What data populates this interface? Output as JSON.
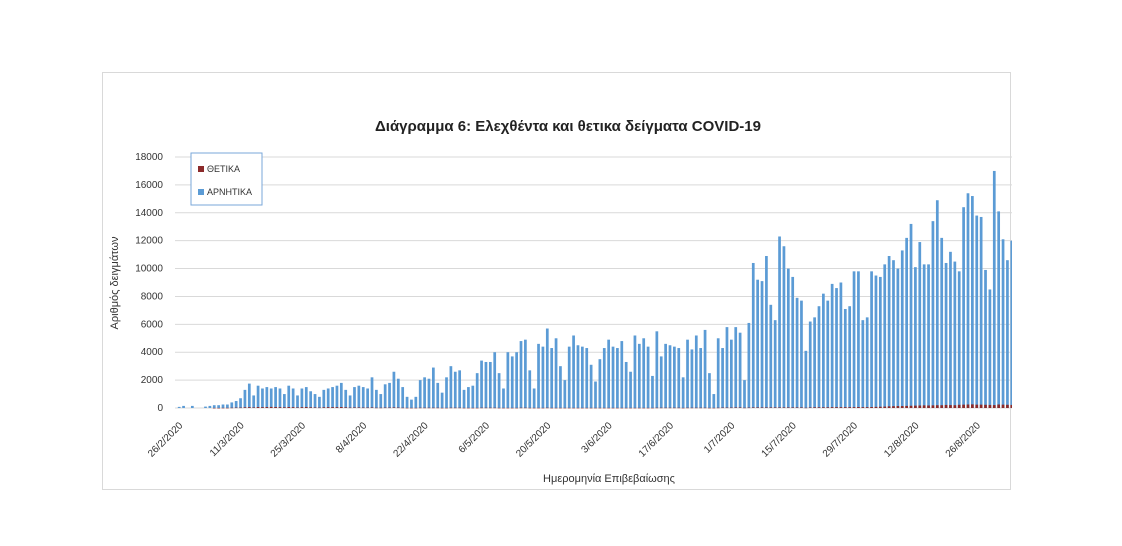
{
  "chart_data": {
    "type": "bar",
    "title": "Διάγραμμα 6: Ελεχθέντα και θετικα δείγματα COVID-19",
    "xlabel": "Ημερομηνία Επιβεβαίωσης",
    "ylabel": "Αριθμός δειγμάτων",
    "ylim": [
      0,
      18000
    ],
    "yticks": [
      0,
      2000,
      4000,
      6000,
      8000,
      10000,
      12000,
      14000,
      16000,
      18000
    ],
    "xtick_labels": [
      "26/2/2020",
      "11/3/2020",
      "25/3/2020",
      "8/4/2020",
      "22/4/2020",
      "6/5/2020",
      "20/5/2020",
      "3/6/2020",
      "17/6/2020",
      "1/7/2020",
      "15/7/2020",
      "29/7/2020",
      "12/8/2020",
      "26/8/2020"
    ],
    "first_date": "26/2/2020",
    "legend": [
      "ΘΕΤΙΚΑ",
      "ΑΡΝΗΤΙΚΑ"
    ],
    "legend_position": "top-left",
    "grid": true,
    "colors": {
      "positive": "#8b2a2a",
      "negative": "#5b9bd5"
    },
    "series": [
      {
        "name": "ΑΡΝΗΤΙΚΑ",
        "values": [
          80,
          150,
          0,
          150,
          0,
          0,
          100,
          150,
          200,
          200,
          250,
          250,
          400,
          500,
          700,
          1300,
          1750,
          900,
          1600,
          1400,
          1500,
          1400,
          1500,
          1400,
          1000,
          1600,
          1400,
          900,
          1400,
          1500,
          1200,
          1000,
          800,
          1300,
          1400,
          1500,
          1600,
          1800,
          1300,
          900,
          1500,
          1600,
          1500,
          1400,
          2200,
          1300,
          1000,
          1700,
          1800,
          2600,
          2100,
          1500,
          800,
          600,
          800,
          2000,
          2200,
          2100,
          2900,
          1800,
          1100,
          2200,
          3000,
          2600,
          2700,
          1300,
          1500,
          1600,
          2500,
          3400,
          3300,
          3300,
          4000,
          2500,
          1400,
          4000,
          3700,
          4000,
          4800,
          4900,
          2700,
          1400,
          4600,
          4400,
          5700,
          4300,
          5000,
          3000,
          2000,
          4400,
          5200,
          4500,
          4400,
          4300,
          3100,
          1900,
          3500,
          4300,
          4900,
          4400,
          4300,
          4800,
          3300,
          2600,
          5200,
          4600,
          5000,
          4400,
          2300,
          5500,
          3700,
          4600,
          4500,
          4400,
          4300,
          2200,
          4900,
          4200,
          5200,
          4300,
          5600,
          2500,
          1000,
          5000,
          4300,
          5800,
          4900,
          5800,
          5400,
          2000,
          6100,
          10400,
          9200,
          9100,
          10900,
          7400,
          6300,
          12300,
          11600,
          10000,
          9400,
          7900,
          7700,
          4100,
          6200,
          6500,
          7300,
          8200,
          7700,
          8900,
          8600,
          9000,
          7100,
          7300,
          9800,
          9800,
          6300,
          6500,
          9800,
          9500,
          9400,
          10300,
          10900,
          10600,
          10000,
          11300,
          12200,
          13200,
          10100,
          11900,
          10300,
          10300,
          13400,
          14900,
          12200,
          10400,
          11200,
          10500,
          9800,
          14400,
          15400,
          15200,
          13800,
          13700,
          9900,
          8500,
          17000,
          14100,
          12100,
          10600,
          12000
        ]
      },
      {
        "name": "ΘΕΤΙΚΑ",
        "values": [
          0,
          0,
          0,
          0,
          0,
          0,
          0,
          0,
          5,
          5,
          10,
          10,
          20,
          30,
          30,
          50,
          60,
          40,
          70,
          60,
          70,
          80,
          70,
          60,
          50,
          70,
          60,
          40,
          60,
          70,
          50,
          40,
          30,
          50,
          60,
          60,
          60,
          70,
          50,
          30,
          40,
          40,
          30,
          30,
          40,
          20,
          20,
          30,
          30,
          40,
          30,
          20,
          10,
          10,
          10,
          20,
          20,
          20,
          20,
          20,
          10,
          10,
          20,
          20,
          20,
          10,
          10,
          10,
          10,
          20,
          20,
          20,
          20,
          10,
          10,
          10,
          10,
          10,
          20,
          20,
          10,
          10,
          10,
          10,
          20,
          10,
          10,
          10,
          10,
          10,
          10,
          10,
          10,
          10,
          10,
          10,
          10,
          10,
          10,
          10,
          10,
          10,
          10,
          10,
          10,
          10,
          10,
          10,
          10,
          20,
          20,
          20,
          20,
          20,
          20,
          10,
          20,
          20,
          20,
          20,
          20,
          10,
          10,
          20,
          30,
          30,
          30,
          40,
          40,
          20,
          30,
          40,
          40,
          40,
          40,
          40,
          40,
          40,
          40,
          40,
          40,
          40,
          40,
          20,
          40,
          50,
          50,
          50,
          50,
          60,
          60,
          60,
          60,
          60,
          60,
          70,
          60,
          60,
          70,
          80,
          90,
          100,
          120,
          130,
          140,
          140,
          150,
          160,
          170,
          180,
          190,
          180,
          190,
          200,
          200,
          220,
          210,
          200,
          230,
          240,
          250,
          260,
          240,
          240,
          230,
          220,
          210,
          250,
          240,
          230,
          220,
          230
        ]
      }
    ]
  }
}
